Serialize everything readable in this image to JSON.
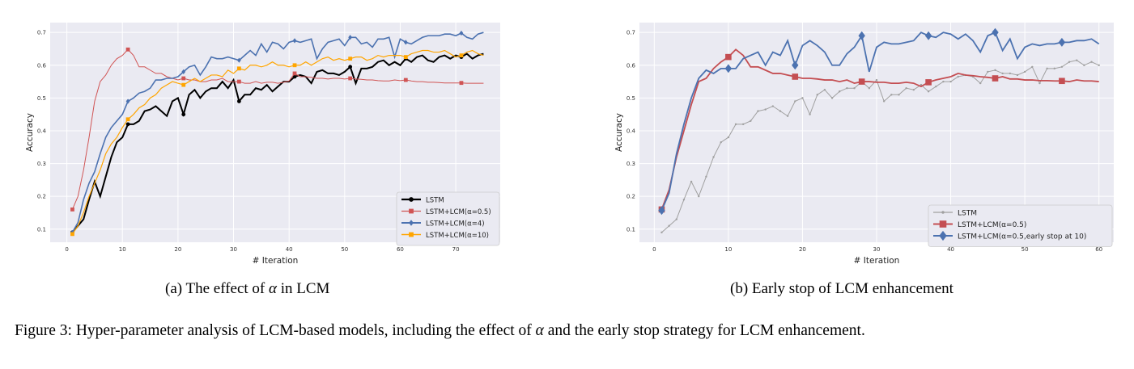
{
  "chart_data": [
    {
      "type": "line",
      "xlabel": "# Iteration",
      "ylabel": "Accuracy",
      "xlim": [
        -3,
        78
      ],
      "ylim": [
        0.06,
        0.73
      ],
      "x_ticks": [
        0,
        10,
        20,
        30,
        40,
        50,
        60,
        70
      ],
      "y_ticks": [
        0.1,
        0.2,
        0.3,
        0.4,
        0.5,
        0.6,
        0.7
      ],
      "grid": true,
      "legend_position": "lower-right",
      "series": [
        {
          "name": "LSTM",
          "color": "#000000",
          "marker": "circle",
          "values": [
            0.09,
            0.11,
            0.13,
            0.19,
            0.245,
            0.2,
            0.26,
            0.32,
            0.365,
            0.38,
            0.42,
            0.42,
            0.43,
            0.46,
            0.465,
            0.475,
            0.46,
            0.445,
            0.49,
            0.5,
            0.45,
            0.51,
            0.525,
            0.5,
            0.52,
            0.53,
            0.53,
            0.55,
            0.53,
            0.555,
            0.49,
            0.51,
            0.51,
            0.53,
            0.525,
            0.54,
            0.52,
            0.535,
            0.55,
            0.55,
            0.565,
            0.57,
            0.565,
            0.545,
            0.58,
            0.585,
            0.575,
            0.575,
            0.57,
            0.58,
            0.595,
            0.545,
            0.59,
            0.59,
            0.595,
            0.61,
            0.615,
            0.6,
            0.61,
            0.6,
            0.62,
            0.61,
            0.625,
            0.63,
            0.615,
            0.61,
            0.625,
            0.63,
            0.62,
            0.63,
            0.625,
            0.635,
            0.62,
            0.63,
            0.635
          ]
        },
        {
          "name": "LSTM+LCM(α=0.5)",
          "color": "#d05454",
          "marker": "square",
          "values": [
            0.16,
            0.2,
            0.28,
            0.38,
            0.49,
            0.55,
            0.57,
            0.6,
            0.62,
            0.63,
            0.648,
            0.63,
            0.595,
            0.595,
            0.585,
            0.575,
            0.575,
            0.565,
            0.56,
            0.555,
            0.56,
            0.555,
            0.555,
            0.55,
            0.55,
            0.555,
            0.555,
            0.56,
            0.55,
            0.55,
            0.55,
            0.545,
            0.545,
            0.55,
            0.545,
            0.548,
            0.548,
            0.545,
            0.548,
            0.552,
            0.575,
            0.565,
            0.565,
            0.563,
            0.56,
            0.56,
            0.558,
            0.56,
            0.56,
            0.558,
            0.56,
            0.558,
            0.557,
            0.555,
            0.555,
            0.553,
            0.552,
            0.552,
            0.555,
            0.553,
            0.555,
            0.552,
            0.55,
            0.55,
            0.548,
            0.548,
            0.547,
            0.546,
            0.546,
            0.546,
            0.546,
            0.545,
            0.545,
            0.545,
            0.545
          ]
        },
        {
          "name": "LSTM+LCM(α=4)",
          "color": "#4c72b0",
          "marker": "diamond",
          "values": [
            0.09,
            0.12,
            0.19,
            0.24,
            0.275,
            0.33,
            0.38,
            0.41,
            0.43,
            0.45,
            0.49,
            0.5,
            0.515,
            0.52,
            0.53,
            0.555,
            0.555,
            0.56,
            0.56,
            0.565,
            0.58,
            0.595,
            0.6,
            0.57,
            0.595,
            0.625,
            0.62,
            0.62,
            0.625,
            0.62,
            0.615,
            0.63,
            0.645,
            0.63,
            0.665,
            0.64,
            0.67,
            0.665,
            0.65,
            0.67,
            0.675,
            0.67,
            0.675,
            0.68,
            0.62,
            0.65,
            0.67,
            0.675,
            0.68,
            0.66,
            0.685,
            0.685,
            0.665,
            0.67,
            0.655,
            0.68,
            0.68,
            0.685,
            0.625,
            0.68,
            0.67,
            0.665,
            0.675,
            0.685,
            0.69,
            0.69,
            0.69,
            0.695,
            0.695,
            0.69,
            0.698,
            0.685,
            0.68,
            0.695,
            0.7
          ]
        },
        {
          "name": "LSTM+LCM(α=10)",
          "color": "#ffa500",
          "marker": "square",
          "values": [
            0.085,
            0.11,
            0.15,
            0.2,
            0.24,
            0.28,
            0.33,
            0.36,
            0.38,
            0.41,
            0.435,
            0.45,
            0.47,
            0.48,
            0.5,
            0.51,
            0.53,
            0.54,
            0.55,
            0.545,
            0.54,
            0.55,
            0.56,
            0.55,
            0.56,
            0.57,
            0.57,
            0.565,
            0.585,
            0.575,
            0.59,
            0.585,
            0.6,
            0.6,
            0.595,
            0.6,
            0.61,
            0.6,
            0.6,
            0.595,
            0.6,
            0.6,
            0.61,
            0.6,
            0.61,
            0.62,
            0.625,
            0.615,
            0.62,
            0.615,
            0.62,
            0.625,
            0.625,
            0.615,
            0.62,
            0.63,
            0.625,
            0.63,
            0.63,
            0.63,
            0.625,
            0.635,
            0.64,
            0.645,
            0.645,
            0.64,
            0.64,
            0.645,
            0.635,
            0.625,
            0.63,
            0.64,
            0.645,
            0.635,
            0.63
          ]
        }
      ],
      "marker_every": 10
    },
    {
      "type": "line",
      "xlabel": "# Iteration",
      "ylabel": "Accuracy",
      "xlim": [
        -2,
        62
      ],
      "ylim": [
        0.06,
        0.73
      ],
      "x_ticks": [
        0,
        10,
        20,
        30,
        40,
        50,
        60
      ],
      "y_ticks": [
        0.1,
        0.2,
        0.3,
        0.4,
        0.5,
        0.6,
        0.7
      ],
      "grid": true,
      "legend_position": "lower-right",
      "series": [
        {
          "name": "LSTM",
          "color": "#a0a0a0",
          "marker": "dot",
          "values": [
            0.09,
            0.11,
            0.13,
            0.19,
            0.245,
            0.2,
            0.26,
            0.32,
            0.365,
            0.38,
            0.42,
            0.42,
            0.43,
            0.46,
            0.465,
            0.475,
            0.46,
            0.445,
            0.49,
            0.5,
            0.45,
            0.51,
            0.525,
            0.5,
            0.52,
            0.53,
            0.53,
            0.55,
            0.53,
            0.555,
            0.49,
            0.51,
            0.51,
            0.53,
            0.525,
            0.54,
            0.52,
            0.535,
            0.55,
            0.55,
            0.565,
            0.57,
            0.565,
            0.545,
            0.58,
            0.585,
            0.575,
            0.575,
            0.57,
            0.58,
            0.595,
            0.545,
            0.59,
            0.59,
            0.595,
            0.61,
            0.615,
            0.6,
            0.61,
            0.6
          ]
        },
        {
          "name": "LSTM+LCM(α=0.5)",
          "color": "#c44e52",
          "marker": "square",
          "markers_at": [
            1,
            10,
            19,
            28,
            37,
            46,
            55
          ],
          "values": [
            0.16,
            0.22,
            0.32,
            0.4,
            0.48,
            0.55,
            0.56,
            0.59,
            0.61,
            0.625,
            0.648,
            0.63,
            0.595,
            0.595,
            0.585,
            0.575,
            0.575,
            0.57,
            0.565,
            0.56,
            0.56,
            0.558,
            0.555,
            0.555,
            0.55,
            0.555,
            0.545,
            0.55,
            0.55,
            0.548,
            0.548,
            0.545,
            0.545,
            0.548,
            0.545,
            0.535,
            0.548,
            0.555,
            0.56,
            0.565,
            0.575,
            0.57,
            0.568,
            0.565,
            0.563,
            0.56,
            0.565,
            0.558,
            0.558,
            0.555,
            0.555,
            0.553,
            0.553,
            0.552,
            0.552,
            0.55,
            0.555,
            0.552,
            0.552,
            0.55
          ]
        },
        {
          "name": "LSTM+LCM(α=0.5,early stop at 10)",
          "color": "#4c72b0",
          "marker": "diamond",
          "markers_at": [
            1,
            10,
            19,
            28,
            37,
            46,
            55
          ],
          "values": [
            0.157,
            0.21,
            0.33,
            0.42,
            0.5,
            0.56,
            0.585,
            0.575,
            0.59,
            0.59,
            0.59,
            0.62,
            0.63,
            0.64,
            0.6,
            0.64,
            0.63,
            0.675,
            0.6,
            0.66,
            0.675,
            0.66,
            0.64,
            0.6,
            0.6,
            0.635,
            0.655,
            0.69,
            0.58,
            0.655,
            0.67,
            0.665,
            0.665,
            0.67,
            0.675,
            0.7,
            0.69,
            0.685,
            0.7,
            0.695,
            0.68,
            0.695,
            0.675,
            0.64,
            0.69,
            0.7,
            0.645,
            0.68,
            0.62,
            0.655,
            0.665,
            0.66,
            0.665,
            0.665,
            0.67,
            0.67,
            0.675,
            0.675,
            0.68,
            0.665
          ]
        }
      ]
    }
  ],
  "subcaptions": {
    "a_prefix": "(a) The effect of ",
    "a_symbol": "α",
    "a_suffix": " in LCM",
    "b": "(b) Early stop of LCM enhancement"
  },
  "caption": {
    "prefix": "Figure 3: Hyper-parameter analysis of LCM-based models, including the effect of ",
    "symbol": "α",
    "suffix": " and the early stop strategy for LCM enhancement."
  }
}
